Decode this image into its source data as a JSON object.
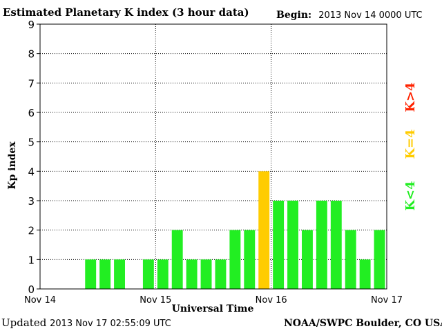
{
  "header": {
    "title": "Estimated Planetary K index (3 hour data)",
    "begin_label": "Begin:",
    "begin_value": "2013 Nov 14 0000 UTC"
  },
  "footer": {
    "updated_label": "Updated",
    "updated_value": "2013 Nov 17 02:55:09 UTC",
    "credit": "NOAA/SWPC Boulder, CO USA"
  },
  "legend": [
    {
      "label": "K>4",
      "color": "#ff2200"
    },
    {
      "label": "K=4",
      "color": "#ffcc00"
    },
    {
      "label": "K<4",
      "color": "#22ee22"
    }
  ],
  "chart_data": {
    "type": "bar",
    "title": "Estimated Planetary K index (3 hour data)",
    "xlabel": "Universal Time",
    "ylabel": "Kp index",
    "ylim": [
      0,
      9
    ],
    "yticks": [
      "0",
      "1",
      "2",
      "3",
      "4",
      "5",
      "6",
      "7",
      "8",
      "9"
    ],
    "xticks": [
      "Nov 14",
      "Nov 15",
      "Nov 16",
      "Nov 17"
    ],
    "grid": true,
    "colors": {
      "below4": "#22ee22",
      "equal4": "#ffcc00",
      "above4": "#ff2200"
    },
    "categories": [
      "Nov 14 00",
      "Nov 14 03",
      "Nov 14 06",
      "Nov 14 09",
      "Nov 14 12",
      "Nov 14 15",
      "Nov 14 18",
      "Nov 14 21",
      "Nov 15 00",
      "Nov 15 03",
      "Nov 15 06",
      "Nov 15 09",
      "Nov 15 12",
      "Nov 15 15",
      "Nov 15 18",
      "Nov 15 21",
      "Nov 16 00",
      "Nov 16 03",
      "Nov 16 06",
      "Nov 16 09",
      "Nov 16 12",
      "Nov 16 15",
      "Nov 16 18",
      "Nov 16 21"
    ],
    "values": [
      null,
      null,
      null,
      1,
      1,
      1,
      null,
      1,
      1,
      2,
      1,
      1,
      1,
      2,
      2,
      4,
      3,
      3,
      2,
      3,
      3,
      2,
      1,
      2
    ]
  }
}
